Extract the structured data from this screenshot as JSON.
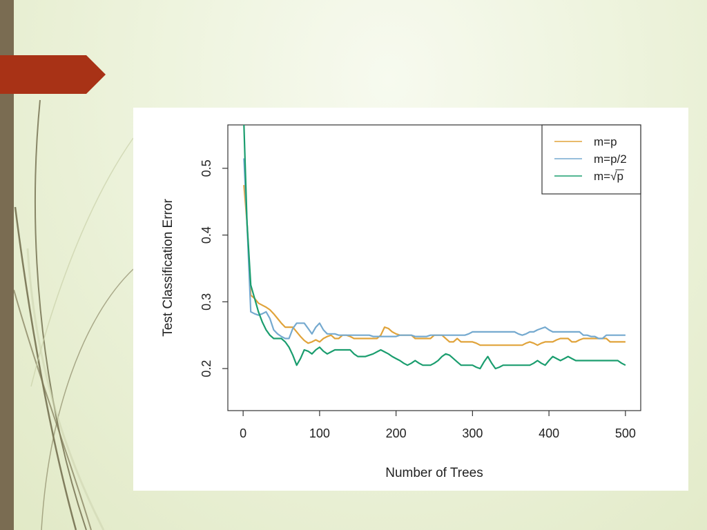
{
  "slide": {
    "bar_color": "#7a6c52",
    "tab_color": "#a83216"
  },
  "chart_data": {
    "type": "line",
    "title": "",
    "xlabel": "Number of Trees",
    "ylabel": "Test Classification Error",
    "xlim": [
      -20,
      520
    ],
    "ylim": [
      0.137,
      0.565
    ],
    "xticks": [
      0,
      100,
      200,
      300,
      400,
      500
    ],
    "xtick_labels": [
      "0",
      "100",
      "200",
      "300",
      "400",
      "500"
    ],
    "yticks": [
      0.2,
      0.3,
      0.4,
      0.5
    ],
    "ytick_labels": [
      "0.2",
      "0.3",
      "0.4",
      "0.5"
    ],
    "grid": false,
    "legend_position": "top-right",
    "series": [
      {
        "name": "m=p",
        "legend_label": {
          "prefix": "m=",
          "body": "p",
          "sqrt": false
        },
        "color": "#e0a33a",
        "x": [
          1,
          5,
          10,
          15,
          20,
          25,
          30,
          35,
          40,
          45,
          50,
          55,
          60,
          65,
          70,
          75,
          80,
          85,
          90,
          95,
          100,
          105,
          110,
          115,
          120,
          125,
          130,
          135,
          140,
          145,
          150,
          155,
          160,
          165,
          170,
          175,
          180,
          185,
          190,
          195,
          200,
          205,
          210,
          215,
          220,
          225,
          230,
          235,
          240,
          245,
          250,
          255,
          260,
          265,
          270,
          275,
          280,
          285,
          290,
          295,
          300,
          305,
          310,
          315,
          320,
          325,
          330,
          335,
          340,
          345,
          350,
          355,
          360,
          365,
          370,
          375,
          380,
          385,
          390,
          395,
          400,
          405,
          410,
          415,
          420,
          425,
          430,
          435,
          440,
          445,
          450,
          455,
          460,
          465,
          470,
          475,
          480,
          485,
          490,
          495,
          500
        ],
        "y": [
          0.475,
          0.42,
          0.31,
          0.305,
          0.298,
          0.295,
          0.292,
          0.288,
          0.282,
          0.275,
          0.268,
          0.262,
          0.262,
          0.262,
          0.255,
          0.248,
          0.242,
          0.238,
          0.24,
          0.243,
          0.24,
          0.245,
          0.248,
          0.25,
          0.245,
          0.245,
          0.25,
          0.25,
          0.248,
          0.245,
          0.245,
          0.245,
          0.245,
          0.245,
          0.245,
          0.245,
          0.25,
          0.262,
          0.26,
          0.255,
          0.252,
          0.25,
          0.25,
          0.25,
          0.25,
          0.245,
          0.245,
          0.245,
          0.245,
          0.245,
          0.25,
          0.25,
          0.25,
          0.245,
          0.24,
          0.24,
          0.245,
          0.24,
          0.24,
          0.24,
          0.24,
          0.238,
          0.235,
          0.235,
          0.235,
          0.235,
          0.235,
          0.235,
          0.235,
          0.235,
          0.235,
          0.235,
          0.235,
          0.235,
          0.238,
          0.24,
          0.238,
          0.235,
          0.238,
          0.24,
          0.24,
          0.24,
          0.243,
          0.245,
          0.245,
          0.245,
          0.24,
          0.24,
          0.243,
          0.245,
          0.245,
          0.245,
          0.245,
          0.245,
          0.245,
          0.245,
          0.24,
          0.24,
          0.24,
          0.24,
          0.24
        ]
      },
      {
        "name": "m=p/2",
        "legend_label": {
          "prefix": "m=",
          "body": "p/2",
          "sqrt": false
        },
        "color": "#74a9cf",
        "x": [
          1,
          5,
          10,
          15,
          20,
          25,
          30,
          35,
          40,
          45,
          50,
          55,
          60,
          65,
          70,
          75,
          80,
          85,
          90,
          95,
          100,
          105,
          110,
          115,
          120,
          125,
          130,
          135,
          140,
          145,
          150,
          155,
          160,
          165,
          170,
          175,
          180,
          185,
          190,
          195,
          200,
          205,
          210,
          215,
          220,
          225,
          230,
          235,
          240,
          245,
          250,
          255,
          260,
          265,
          270,
          275,
          280,
          285,
          290,
          295,
          300,
          305,
          310,
          315,
          320,
          325,
          330,
          335,
          340,
          345,
          350,
          355,
          360,
          365,
          370,
          375,
          380,
          385,
          390,
          395,
          400,
          405,
          410,
          415,
          420,
          425,
          430,
          435,
          440,
          445,
          450,
          455,
          460,
          465,
          470,
          475,
          480,
          485,
          490,
          495,
          500
        ],
        "y": [
          0.515,
          0.42,
          0.285,
          0.282,
          0.28,
          0.282,
          0.285,
          0.275,
          0.258,
          0.252,
          0.248,
          0.245,
          0.245,
          0.26,
          0.268,
          0.268,
          0.268,
          0.26,
          0.252,
          0.262,
          0.268,
          0.258,
          0.252,
          0.252,
          0.252,
          0.25,
          0.25,
          0.25,
          0.25,
          0.25,
          0.25,
          0.25,
          0.25,
          0.25,
          0.248,
          0.248,
          0.248,
          0.248,
          0.248,
          0.248,
          0.248,
          0.25,
          0.25,
          0.25,
          0.25,
          0.248,
          0.248,
          0.248,
          0.248,
          0.25,
          0.25,
          0.25,
          0.25,
          0.25,
          0.25,
          0.25,
          0.25,
          0.25,
          0.25,
          0.252,
          0.255,
          0.255,
          0.255,
          0.255,
          0.255,
          0.255,
          0.255,
          0.255,
          0.255,
          0.255,
          0.255,
          0.255,
          0.252,
          0.25,
          0.252,
          0.255,
          0.255,
          0.258,
          0.26,
          0.262,
          0.258,
          0.255,
          0.255,
          0.255,
          0.255,
          0.255,
          0.255,
          0.255,
          0.255,
          0.25,
          0.25,
          0.248,
          0.248,
          0.245,
          0.245,
          0.25,
          0.25,
          0.25,
          0.25,
          0.25,
          0.25
        ]
      },
      {
        "name": "m=√p",
        "legend_label": {
          "prefix": "m=",
          "body": "p",
          "sqrt": true
        },
        "color": "#1a9d6e",
        "x": [
          1,
          5,
          10,
          15,
          20,
          25,
          30,
          35,
          40,
          45,
          50,
          55,
          60,
          65,
          70,
          75,
          80,
          85,
          90,
          95,
          100,
          105,
          110,
          115,
          120,
          125,
          130,
          135,
          140,
          145,
          150,
          155,
          160,
          165,
          170,
          175,
          180,
          185,
          190,
          195,
          200,
          205,
          210,
          215,
          220,
          225,
          230,
          235,
          240,
          245,
          250,
          255,
          260,
          265,
          270,
          275,
          280,
          285,
          290,
          295,
          300,
          305,
          310,
          315,
          320,
          325,
          330,
          335,
          340,
          345,
          350,
          355,
          360,
          365,
          370,
          375,
          380,
          385,
          390,
          395,
          400,
          405,
          410,
          415,
          420,
          425,
          430,
          435,
          440,
          445,
          450,
          455,
          460,
          465,
          470,
          475,
          480,
          485,
          490,
          495,
          500
        ],
        "y": [
          0.565,
          0.42,
          0.325,
          0.305,
          0.285,
          0.27,
          0.258,
          0.25,
          0.245,
          0.245,
          0.245,
          0.24,
          0.232,
          0.22,
          0.205,
          0.215,
          0.228,
          0.226,
          0.222,
          0.228,
          0.232,
          0.226,
          0.222,
          0.225,
          0.228,
          0.228,
          0.228,
          0.228,
          0.228,
          0.222,
          0.218,
          0.218,
          0.218,
          0.22,
          0.222,
          0.225,
          0.228,
          0.225,
          0.222,
          0.218,
          0.215,
          0.212,
          0.208,
          0.205,
          0.208,
          0.212,
          0.208,
          0.205,
          0.205,
          0.205,
          0.208,
          0.212,
          0.218,
          0.222,
          0.22,
          0.215,
          0.21,
          0.205,
          0.205,
          0.205,
          0.205,
          0.202,
          0.2,
          0.21,
          0.218,
          0.208,
          0.2,
          0.202,
          0.205,
          0.205,
          0.205,
          0.205,
          0.205,
          0.205,
          0.205,
          0.205,
          0.208,
          0.212,
          0.208,
          0.205,
          0.212,
          0.218,
          0.215,
          0.212,
          0.215,
          0.218,
          0.215,
          0.212,
          0.212,
          0.212,
          0.212,
          0.212,
          0.212,
          0.212,
          0.212,
          0.212,
          0.212,
          0.212,
          0.212,
          0.208,
          0.205
        ]
      }
    ]
  }
}
